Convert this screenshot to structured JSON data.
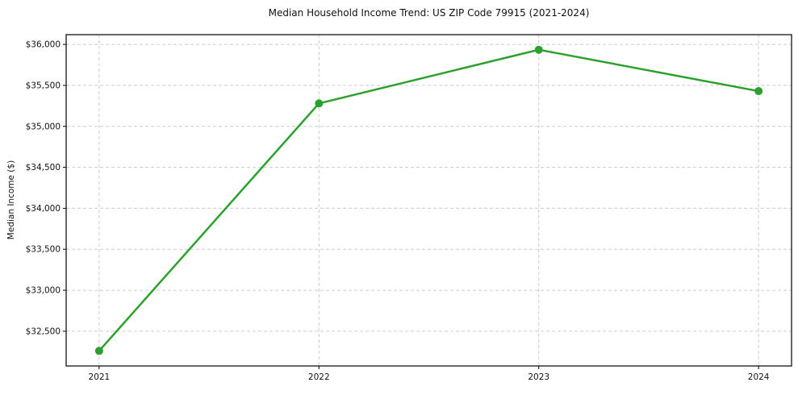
{
  "page": {
    "background_color": "#ffffff"
  },
  "chart_data": {
    "type": "line",
    "title": "Median Household Income Trend: US ZIP Code 79915 (2021-2024)",
    "xlabel": "",
    "ylabel": "Median Income ($)",
    "x": [
      2021,
      2022,
      2023,
      2024
    ],
    "x_tick_labels": [
      "2021",
      "2022",
      "2023",
      "2024"
    ],
    "series": [
      {
        "name": "Median Income",
        "values": [
          32260,
          35280,
          35935,
          35430
        ]
      }
    ],
    "y_ticks": [
      32500,
      33000,
      33500,
      34000,
      34500,
      35000,
      35500,
      36000
    ],
    "y_tick_labels": [
      "$32,500",
      "$33,000",
      "$33,500",
      "$34,000",
      "$34,500",
      "$35,000",
      "$35,500",
      "$36,000"
    ],
    "xlim": [
      2020.85,
      2024.15
    ],
    "ylim": [
      32076,
      36119
    ],
    "grid": true,
    "grid_color": "#cccccc",
    "spine_color": "#000000",
    "line_color": "#2ca02c",
    "marker": "circle",
    "marker_size": 5,
    "legend": null
  }
}
